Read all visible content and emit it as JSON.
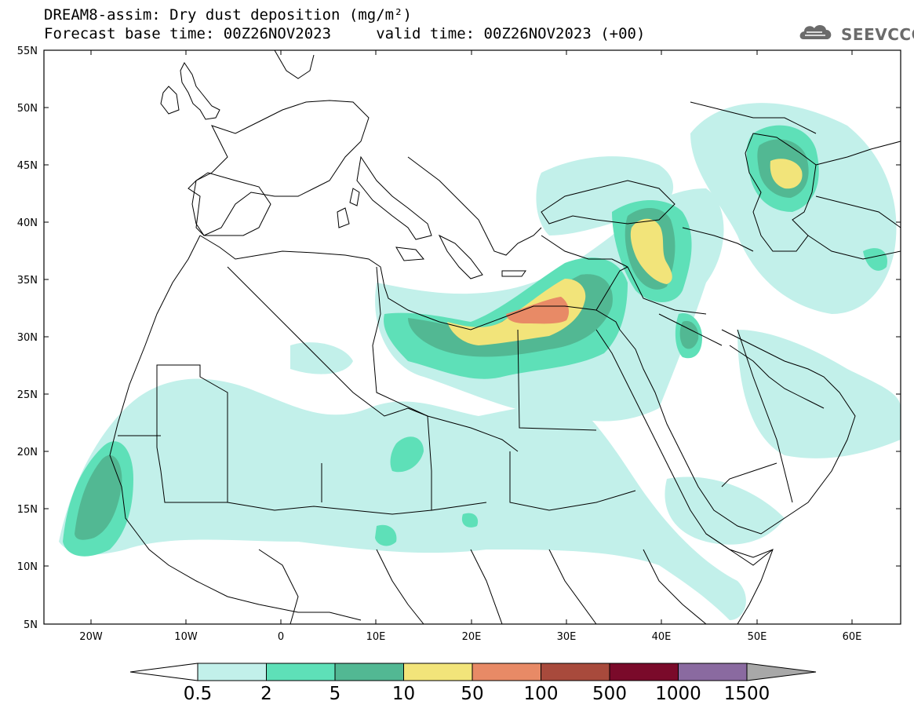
{
  "header": {
    "title_line1": "DREAM8-assim: Dry dust deposition (mg/m²)",
    "title_line2": "Forecast base time: 00Z26NOV2023     valid time: 00Z26NOV2023 (+00)"
  },
  "logo": {
    "text": "SEEVCCC",
    "icon": "cloud-logo-icon",
    "color": "#6b6b6b"
  },
  "map": {
    "latitude_labels": [
      "55N",
      "50N",
      "45N",
      "40N",
      "35N",
      "30N",
      "25N",
      "20N",
      "15N",
      "10N",
      "5N"
    ],
    "longitude_labels": [
      "20W",
      "10W",
      "0",
      "10E",
      "20E",
      "30E",
      "40E",
      "50E",
      "60E"
    ],
    "lon_range": [
      -25,
      65
    ],
    "lat_range": [
      5,
      55
    ]
  },
  "legend": {
    "labels": [
      "0.5",
      "2",
      "5",
      "10",
      "50",
      "100",
      "500",
      "1000",
      "1500"
    ],
    "colors": [
      "#c2f0ea",
      "#5ee0b8",
      "#52b893",
      "#f2e47a",
      "#e88a66",
      "#a84a3c",
      "#7a0a2a",
      "#8a6aa0",
      "#a8a8a8"
    ]
  }
}
